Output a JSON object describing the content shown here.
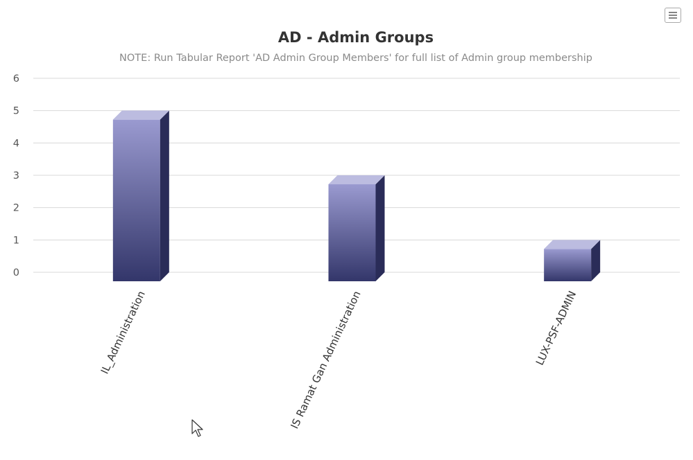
{
  "menu": {
    "icon": "hamburger-menu-icon"
  },
  "chart_data": {
    "type": "bar",
    "title": "AD - Admin Groups",
    "subtitle": "NOTE: Run Tabular Report 'AD Admin Group Members' for full list of Admin group membership",
    "categories": [
      "IL_Administration",
      "IS Ramat Gan Administration",
      "LUX-PSF-ADMIN"
    ],
    "values": [
      5,
      3,
      1
    ],
    "ylim": [
      0,
      6
    ],
    "yticks": [
      0,
      1,
      2,
      3,
      4,
      5,
      6
    ],
    "grid": true,
    "three_d": true,
    "colors": {
      "bar_top": "#9a9ad0",
      "bar_bottom": "#33366a",
      "side": "#2a2c58",
      "cap": "#bcbce0",
      "grid": "#d8d8d8",
      "tick_label": "#555555",
      "cat_label": "#333333"
    }
  }
}
